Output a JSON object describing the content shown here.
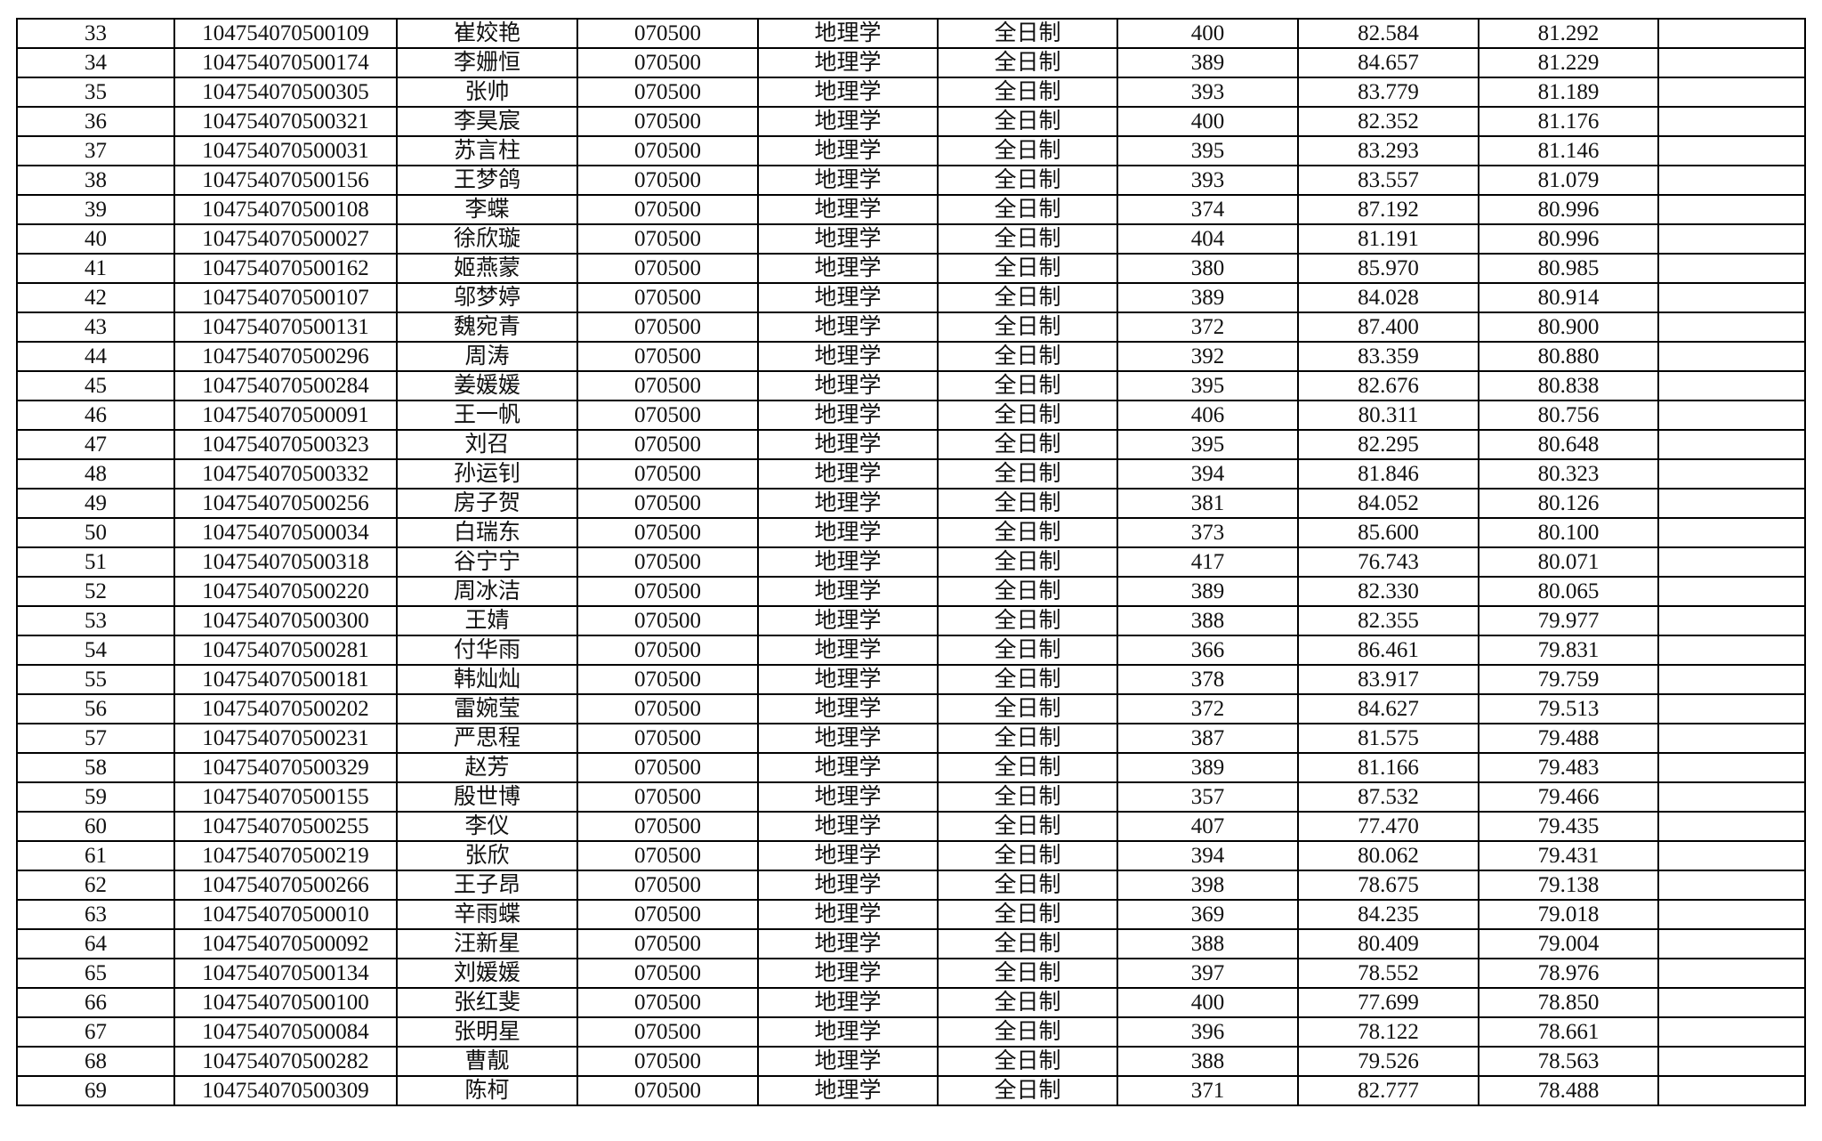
{
  "table": {
    "rows": [
      [
        "33",
        "104754070500109",
        "崔姣艳",
        "070500",
        "地理学",
        "全日制",
        "400",
        "82.584",
        "81.292",
        ""
      ],
      [
        "34",
        "104754070500174",
        "李姗恒",
        "070500",
        "地理学",
        "全日制",
        "389",
        "84.657",
        "81.229",
        ""
      ],
      [
        "35",
        "104754070500305",
        "张帅",
        "070500",
        "地理学",
        "全日制",
        "393",
        "83.779",
        "81.189",
        ""
      ],
      [
        "36",
        "104754070500321",
        "李昊宸",
        "070500",
        "地理学",
        "全日制",
        "400",
        "82.352",
        "81.176",
        ""
      ],
      [
        "37",
        "104754070500031",
        "苏言柱",
        "070500",
        "地理学",
        "全日制",
        "395",
        "83.293",
        "81.146",
        ""
      ],
      [
        "38",
        "104754070500156",
        "王梦鸽",
        "070500",
        "地理学",
        "全日制",
        "393",
        "83.557",
        "81.079",
        ""
      ],
      [
        "39",
        "104754070500108",
        "李蝶",
        "070500",
        "地理学",
        "全日制",
        "374",
        "87.192",
        "80.996",
        ""
      ],
      [
        "40",
        "104754070500027",
        "徐欣璇",
        "070500",
        "地理学",
        "全日制",
        "404",
        "81.191",
        "80.996",
        ""
      ],
      [
        "41",
        "104754070500162",
        "姬燕蒙",
        "070500",
        "地理学",
        "全日制",
        "380",
        "85.970",
        "80.985",
        ""
      ],
      [
        "42",
        "104754070500107",
        "邬梦婷",
        "070500",
        "地理学",
        "全日制",
        "389",
        "84.028",
        "80.914",
        ""
      ],
      [
        "43",
        "104754070500131",
        "魏宛青",
        "070500",
        "地理学",
        "全日制",
        "372",
        "87.400",
        "80.900",
        ""
      ],
      [
        "44",
        "104754070500296",
        "周涛",
        "070500",
        "地理学",
        "全日制",
        "392",
        "83.359",
        "80.880",
        ""
      ],
      [
        "45",
        "104754070500284",
        "姜媛媛",
        "070500",
        "地理学",
        "全日制",
        "395",
        "82.676",
        "80.838",
        ""
      ],
      [
        "46",
        "104754070500091",
        "王一帆",
        "070500",
        "地理学",
        "全日制",
        "406",
        "80.311",
        "80.756",
        ""
      ],
      [
        "47",
        "104754070500323",
        "刘召",
        "070500",
        "地理学",
        "全日制",
        "395",
        "82.295",
        "80.648",
        ""
      ],
      [
        "48",
        "104754070500332",
        "孙运钊",
        "070500",
        "地理学",
        "全日制",
        "394",
        "81.846",
        "80.323",
        ""
      ],
      [
        "49",
        "104754070500256",
        "房子贺",
        "070500",
        "地理学",
        "全日制",
        "381",
        "84.052",
        "80.126",
        ""
      ],
      [
        "50",
        "104754070500034",
        "白瑞东",
        "070500",
        "地理学",
        "全日制",
        "373",
        "85.600",
        "80.100",
        ""
      ],
      [
        "51",
        "104754070500318",
        "谷宁宁",
        "070500",
        "地理学",
        "全日制",
        "417",
        "76.743",
        "80.071",
        ""
      ],
      [
        "52",
        "104754070500220",
        "周冰洁",
        "070500",
        "地理学",
        "全日制",
        "389",
        "82.330",
        "80.065",
        ""
      ],
      [
        "53",
        "104754070500300",
        "王婧",
        "070500",
        "地理学",
        "全日制",
        "388",
        "82.355",
        "79.977",
        ""
      ],
      [
        "54",
        "104754070500281",
        "付华雨",
        "070500",
        "地理学",
        "全日制",
        "366",
        "86.461",
        "79.831",
        ""
      ],
      [
        "55",
        "104754070500181",
        "韩灿灿",
        "070500",
        "地理学",
        "全日制",
        "378",
        "83.917",
        "79.759",
        ""
      ],
      [
        "56",
        "104754070500202",
        "雷婉莹",
        "070500",
        "地理学",
        "全日制",
        "372",
        "84.627",
        "79.513",
        ""
      ],
      [
        "57",
        "104754070500231",
        "严思程",
        "070500",
        "地理学",
        "全日制",
        "387",
        "81.575",
        "79.488",
        ""
      ],
      [
        "58",
        "104754070500329",
        "赵芳",
        "070500",
        "地理学",
        "全日制",
        "389",
        "81.166",
        "79.483",
        ""
      ],
      [
        "59",
        "104754070500155",
        "殷世博",
        "070500",
        "地理学",
        "全日制",
        "357",
        "87.532",
        "79.466",
        ""
      ],
      [
        "60",
        "104754070500255",
        "李仪",
        "070500",
        "地理学",
        "全日制",
        "407",
        "77.470",
        "79.435",
        ""
      ],
      [
        "61",
        "104754070500219",
        "张欣",
        "070500",
        "地理学",
        "全日制",
        "394",
        "80.062",
        "79.431",
        ""
      ],
      [
        "62",
        "104754070500266",
        "王子昂",
        "070500",
        "地理学",
        "全日制",
        "398",
        "78.675",
        "79.138",
        ""
      ],
      [
        "63",
        "104754070500010",
        "辛雨蝶",
        "070500",
        "地理学",
        "全日制",
        "369",
        "84.235",
        "79.018",
        ""
      ],
      [
        "64",
        "104754070500092",
        "汪新星",
        "070500",
        "地理学",
        "全日制",
        "388",
        "80.409",
        "79.004",
        ""
      ],
      [
        "65",
        "104754070500134",
        "刘媛媛",
        "070500",
        "地理学",
        "全日制",
        "397",
        "78.552",
        "78.976",
        ""
      ],
      [
        "66",
        "104754070500100",
        "张红斐",
        "070500",
        "地理学",
        "全日制",
        "400",
        "77.699",
        "78.850",
        ""
      ],
      [
        "67",
        "104754070500084",
        "张明星",
        "070500",
        "地理学",
        "全日制",
        "396",
        "78.122",
        "78.661",
        ""
      ],
      [
        "68",
        "104754070500282",
        "曹靓",
        "070500",
        "地理学",
        "全日制",
        "388",
        "79.526",
        "78.563",
        ""
      ],
      [
        "69",
        "104754070500309",
        "陈柯",
        "070500",
        "地理学",
        "全日制",
        "371",
        "82.777",
        "78.488",
        ""
      ]
    ]
  }
}
